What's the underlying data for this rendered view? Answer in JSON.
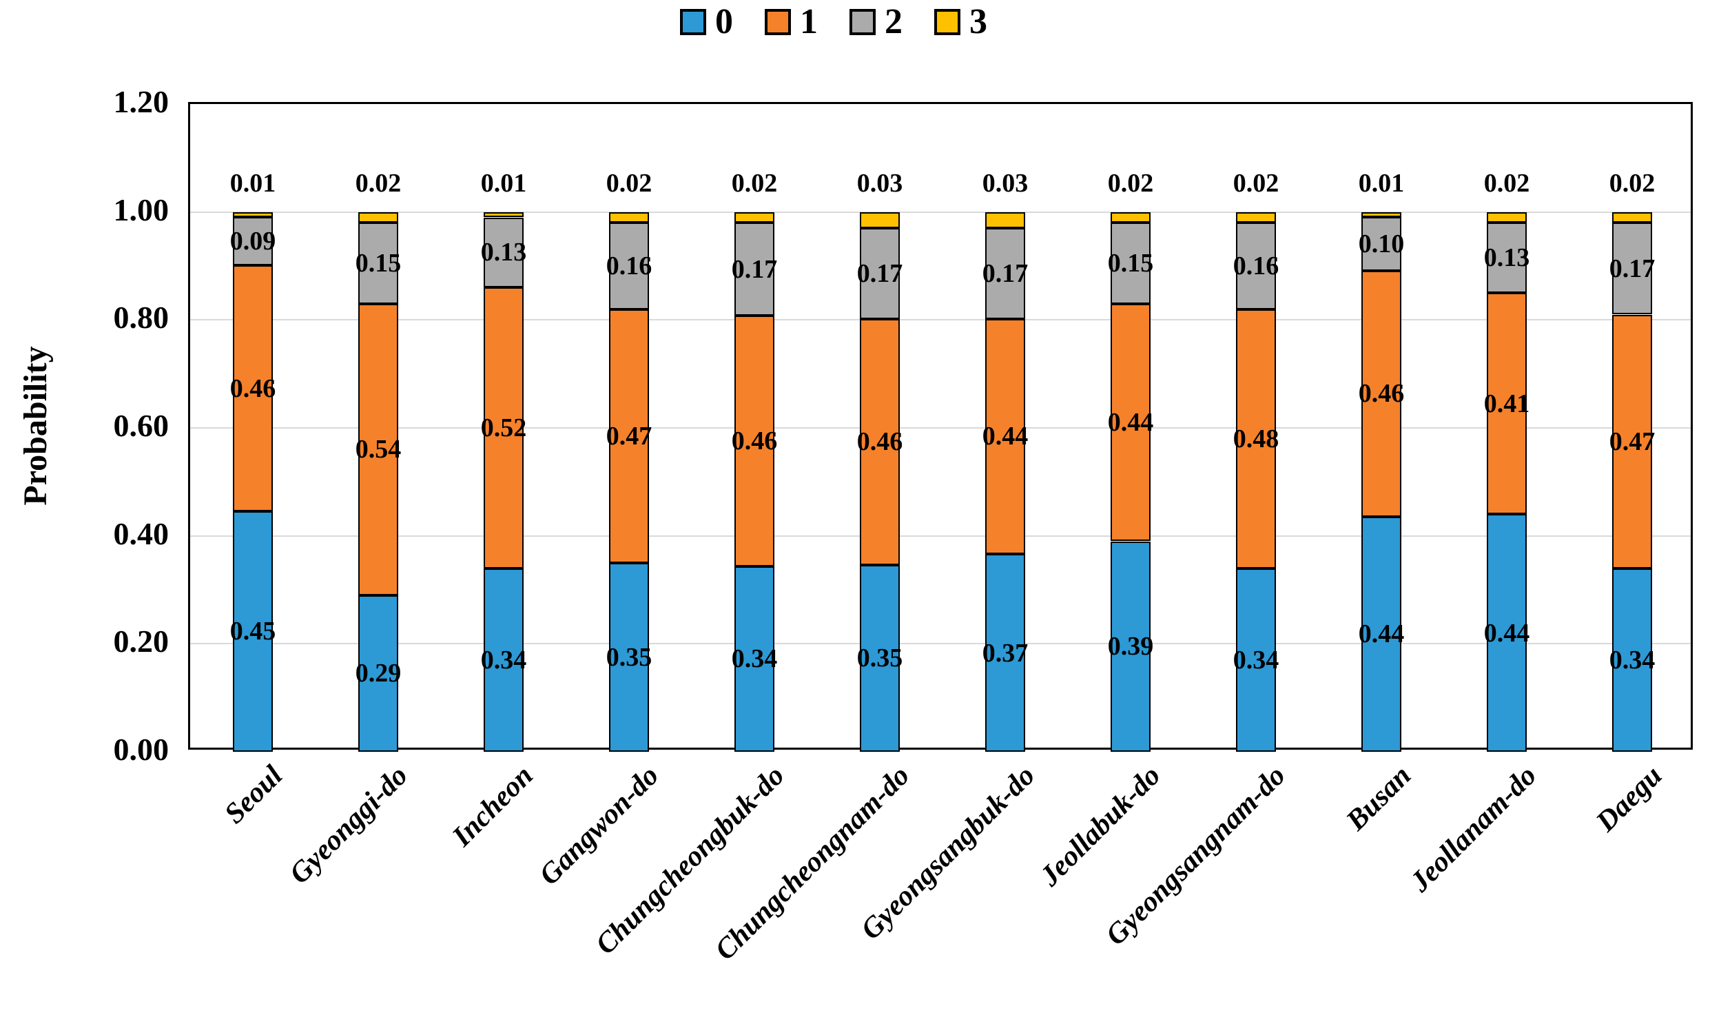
{
  "chart_data": {
    "type": "bar",
    "subtype": "stacked",
    "title": "",
    "ylabel": "Probability",
    "xlabel": "",
    "ylim": [
      0.0,
      1.2
    ],
    "grid": true,
    "legend_position": "top",
    "yticks": [
      {
        "label": "0.00",
        "value": 0.0
      },
      {
        "label": "0.20",
        "value": 0.2
      },
      {
        "label": "0.40",
        "value": 0.4
      },
      {
        "label": "0.60",
        "value": 0.6
      },
      {
        "label": "0.80",
        "value": 0.8
      },
      {
        "label": "1.00",
        "value": 1.0
      },
      {
        "label": "1.20",
        "value": 1.2
      }
    ],
    "gridline_values": [
      0.2,
      0.4,
      0.6,
      0.8,
      1.0
    ],
    "categories": [
      "Seoul",
      "Gyeonggi-do",
      "Incheon",
      "Gangwon-do",
      "Chungcheongbuk-do",
      "Chungcheongnam-do",
      "Gyeongsangbuk-do",
      "Jeollabuk-do",
      "Gyeongsangnam-do",
      "Busan",
      "Jeollanam-do",
      "Daegu"
    ],
    "series": [
      {
        "name": "0",
        "color": "#2D99D5",
        "values": [
          0.45,
          0.29,
          0.34,
          0.35,
          0.34,
          0.35,
          0.37,
          0.39,
          0.34,
          0.44,
          0.44,
          0.34
        ]
      },
      {
        "name": "1",
        "color": "#F5812B",
        "values": [
          0.46,
          0.54,
          0.52,
          0.47,
          0.46,
          0.46,
          0.44,
          0.44,
          0.48,
          0.46,
          0.41,
          0.47
        ]
      },
      {
        "name": "2",
        "color": "#ABABAB",
        "values": [
          0.09,
          0.15,
          0.13,
          0.16,
          0.17,
          0.17,
          0.17,
          0.15,
          0.16,
          0.1,
          0.13,
          0.17
        ]
      },
      {
        "name": "3",
        "color": "#FFC000",
        "values": [
          0.01,
          0.02,
          0.01,
          0.02,
          0.02,
          0.03,
          0.03,
          0.02,
          0.02,
          0.01,
          0.02,
          0.02
        ]
      }
    ],
    "colors": {
      "gridline": "#D9D9D9",
      "bar_border": "#000000",
      "text": "#000000",
      "plot_border": "#000000",
      "background": "#FFFFFF"
    }
  }
}
